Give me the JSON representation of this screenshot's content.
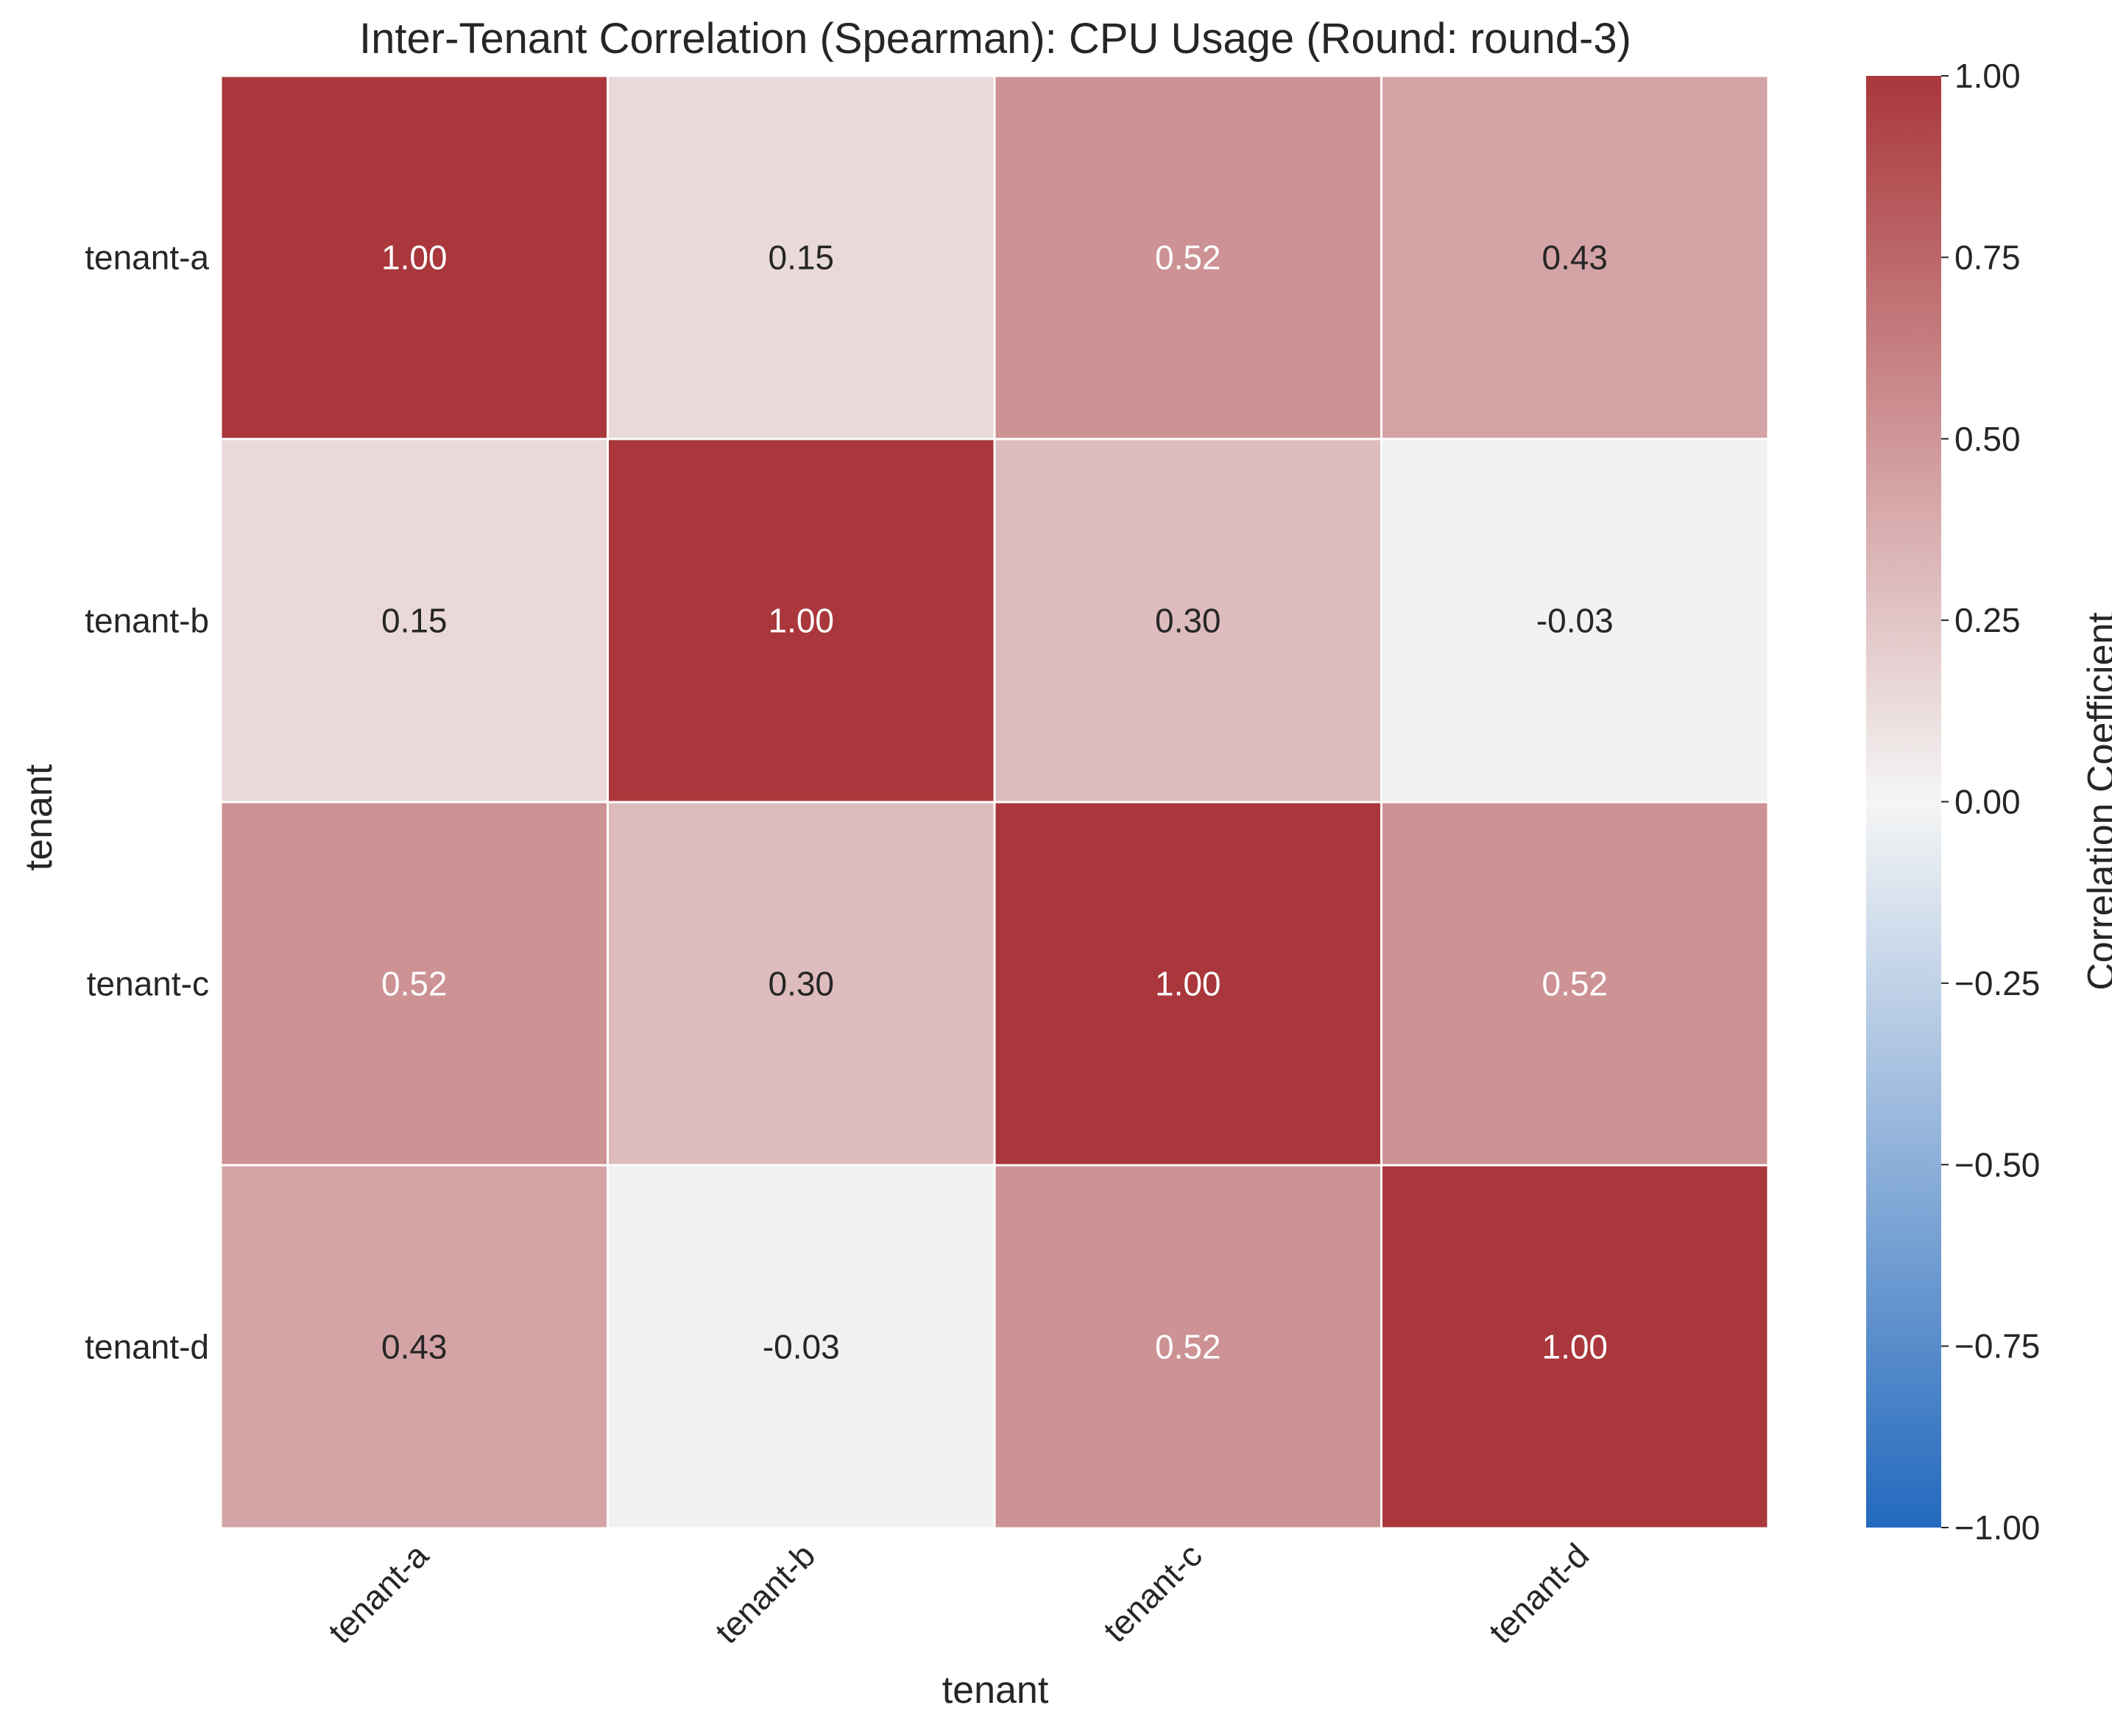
{
  "chart_data": {
    "type": "heatmap",
    "title": "Inter-Tenant Correlation (Spearman): CPU Usage (Round: round-3)",
    "xlabel": "tenant",
    "ylabel": "tenant",
    "x_categories": [
      "tenant-a",
      "tenant-b",
      "tenant-c",
      "tenant-d"
    ],
    "y_categories": [
      "tenant-a",
      "tenant-b",
      "tenant-c",
      "tenant-d"
    ],
    "values": [
      [
        1.0,
        0.15,
        0.52,
        0.43
      ],
      [
        0.15,
        1.0,
        0.3,
        -0.03
      ],
      [
        0.52,
        0.3,
        1.0,
        0.52
      ],
      [
        0.43,
        -0.03,
        0.52,
        1.0
      ]
    ],
    "value_labels": [
      [
        "1.00",
        "0.15",
        "0.52",
        "0.43"
      ],
      [
        "0.15",
        "1.00",
        "0.30",
        "-0.03"
      ],
      [
        "0.52",
        "0.30",
        "1.00",
        "0.52"
      ],
      [
        "0.43",
        "-0.03",
        "0.52",
        "1.00"
      ]
    ],
    "colorbar": {
      "label": "Correlation Coefficient",
      "range": [
        -1.0,
        1.0
      ],
      "ticks": [
        1.0,
        0.75,
        0.5,
        0.25,
        0.0,
        -0.25,
        -0.5,
        -0.75,
        -1.0
      ],
      "tick_labels": [
        "1.00",
        "0.75",
        "0.50",
        "0.25",
        "0.00",
        "−0.25",
        "−0.50",
        "−0.75",
        "−1.00"
      ],
      "colormap": "vlag",
      "colors": {
        "negative": "#2369bd",
        "center": "#f5f5f5",
        "positive": "#a9373b"
      }
    },
    "grid": false,
    "colors": {
      "text_dark": "#262626",
      "text_light": "#ffffff",
      "cell_border": "#ffffff"
    }
  }
}
